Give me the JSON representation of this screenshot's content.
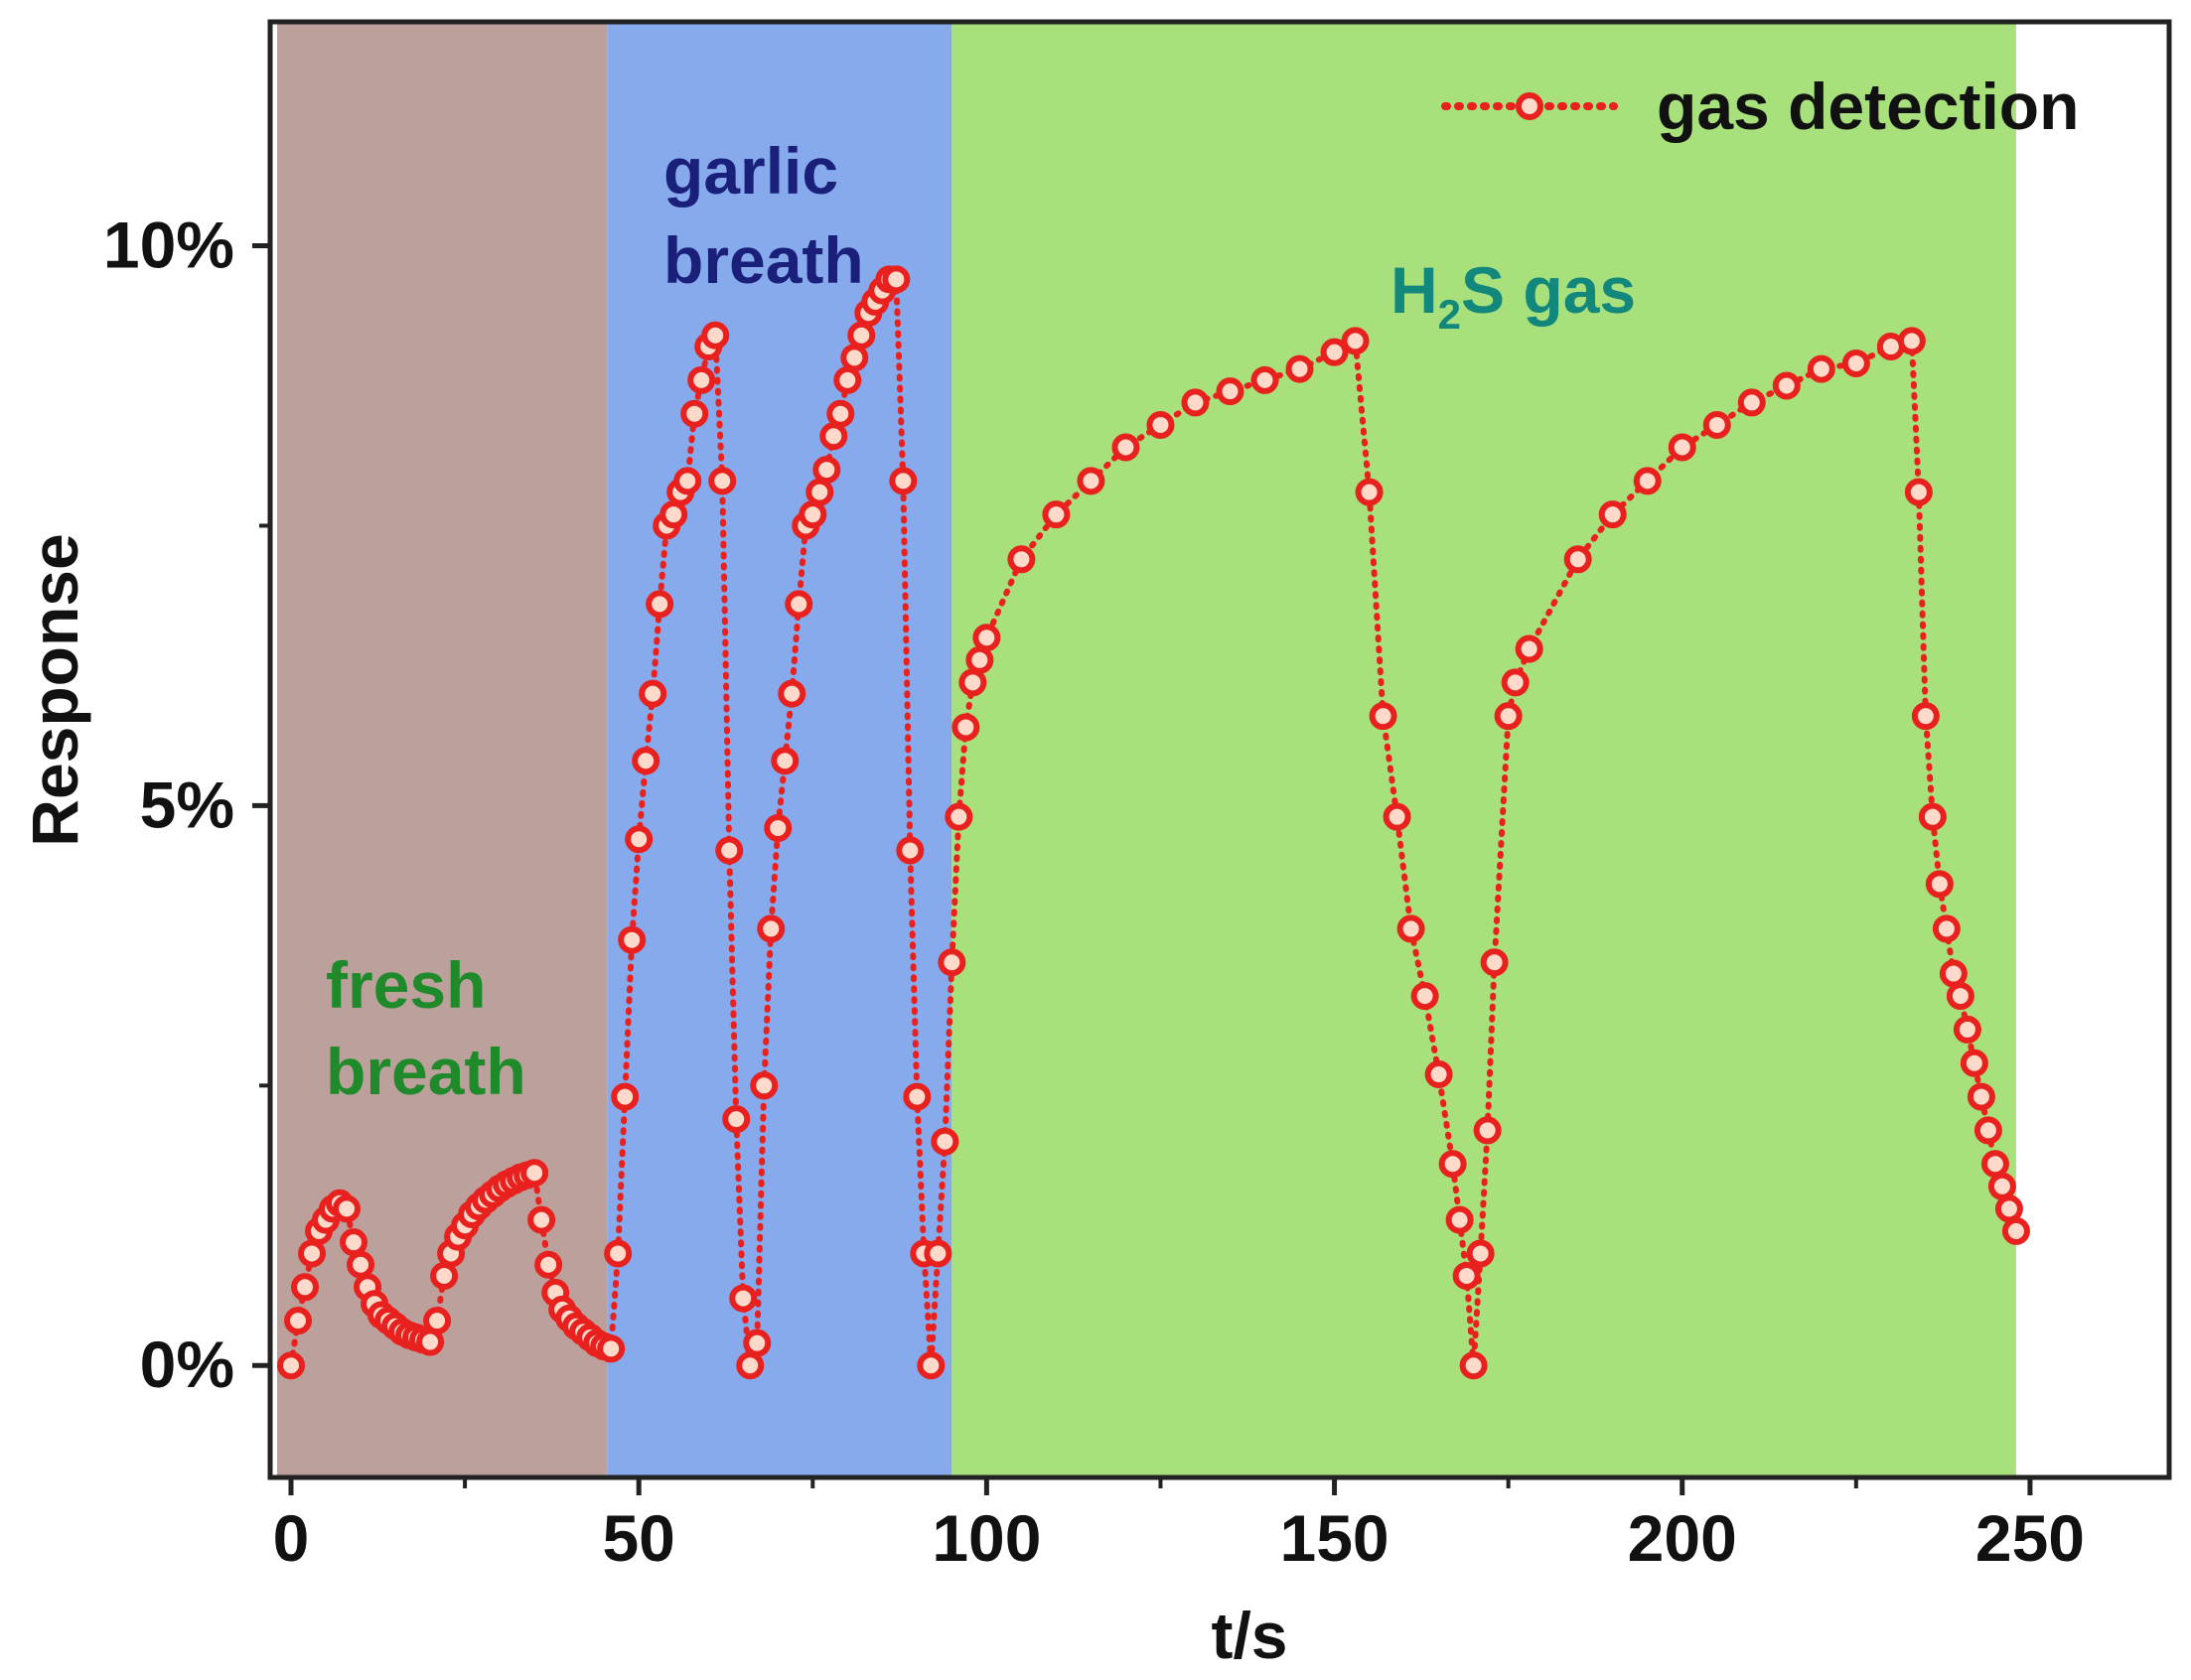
{
  "chart_data": {
    "type": "line",
    "xlabel": "t/s",
    "ylabel": "Response",
    "xlim": [
      -3,
      270
    ],
    "ylim": [
      -0.01,
      0.12
    ],
    "x_ticks": [
      {
        "value": 0,
        "label": "0"
      },
      {
        "value": 50,
        "label": "50"
      },
      {
        "value": 100,
        "label": "100"
      },
      {
        "value": 150,
        "label": "150"
      },
      {
        "value": 200,
        "label": "200"
      },
      {
        "value": 250,
        "label": "250"
      }
    ],
    "y_ticks": [
      {
        "value": 0,
        "label": "0%"
      },
      {
        "value": 0.05,
        "label": "5%"
      },
      {
        "value": 0.1,
        "label": "10%"
      }
    ],
    "regions": [
      {
        "label_lines": [
          "fresh",
          "breath"
        ],
        "x_start": -2,
        "x_end": 45.5,
        "fill": "#bba09c",
        "label_color": "#1e8a2a"
      },
      {
        "label_lines": [
          "garlic",
          "breath"
        ],
        "x_start": 45.5,
        "x_end": 95,
        "fill": "#87aaec",
        "label_color": "#1a1f7a"
      },
      {
        "label_lines": [
          "H",
          "2",
          "S gas"
        ],
        "x_start": 95,
        "x_end": 248,
        "fill": "#a8e07c",
        "label_color": "#12877c"
      }
    ],
    "grid": false,
    "legend": {
      "position": "top-right"
    },
    "series": [
      {
        "name": "gas detection",
        "color": "#e8201e",
        "points": [
          [
            0,
            0.0
          ],
          [
            1,
            0.004
          ],
          [
            2,
            0.007
          ],
          [
            3,
            0.01
          ],
          [
            4,
            0.012
          ],
          [
            5,
            0.013
          ],
          [
            6,
            0.014
          ],
          [
            7,
            0.0145
          ],
          [
            8,
            0.014
          ],
          [
            9,
            0.011
          ],
          [
            10,
            0.009
          ],
          [
            11,
            0.007
          ],
          [
            12,
            0.0055
          ],
          [
            13,
            0.0045
          ],
          [
            14,
            0.004
          ],
          [
            15,
            0.0035
          ],
          [
            16,
            0.003
          ],
          [
            17,
            0.0027
          ],
          [
            18,
            0.0025
          ],
          [
            19,
            0.0023
          ],
          [
            20,
            0.0021
          ],
          [
            21,
            0.004
          ],
          [
            22,
            0.008
          ],
          [
            23,
            0.01
          ],
          [
            24,
            0.0115
          ],
          [
            25,
            0.0125
          ],
          [
            26,
            0.0135
          ],
          [
            27,
            0.0142
          ],
          [
            28,
            0.0148
          ],
          [
            29,
            0.0153
          ],
          [
            30,
            0.0158
          ],
          [
            31,
            0.0162
          ],
          [
            32,
            0.0165
          ],
          [
            33,
            0.0168
          ],
          [
            34,
            0.017
          ],
          [
            35,
            0.0172
          ],
          [
            36,
            0.013
          ],
          [
            37,
            0.009
          ],
          [
            38,
            0.0065
          ],
          [
            39,
            0.005
          ],
          [
            40,
            0.0042
          ],
          [
            41,
            0.0035
          ],
          [
            42,
            0.003
          ],
          [
            43,
            0.0025
          ],
          [
            44,
            0.002
          ],
          [
            45,
            0.0017
          ],
          [
            46,
            0.0015
          ],
          [
            47,
            0.01
          ],
          [
            48,
            0.024
          ],
          [
            49,
            0.038
          ],
          [
            50,
            0.047
          ],
          [
            51,
            0.054
          ],
          [
            52,
            0.06
          ],
          [
            53,
            0.068
          ],
          [
            54,
            0.075
          ],
          [
            55,
            0.076
          ],
          [
            56,
            0.078
          ],
          [
            57,
            0.079
          ],
          [
            58,
            0.085
          ],
          [
            59,
            0.088
          ],
          [
            60,
            0.091
          ],
          [
            61,
            0.092
          ],
          [
            62,
            0.079
          ],
          [
            63,
            0.046
          ],
          [
            64,
            0.022
          ],
          [
            65,
            0.006
          ],
          [
            66,
            0.0
          ],
          [
            67,
            0.002
          ],
          [
            68,
            0.025
          ],
          [
            69,
            0.039
          ],
          [
            70,
            0.048
          ],
          [
            71,
            0.054
          ],
          [
            72,
            0.06
          ],
          [
            73,
            0.068
          ],
          [
            74,
            0.075
          ],
          [
            75,
            0.076
          ],
          [
            76,
            0.078
          ],
          [
            77,
            0.08
          ],
          [
            78,
            0.083
          ],
          [
            79,
            0.085
          ],
          [
            80,
            0.088
          ],
          [
            81,
            0.09
          ],
          [
            82,
            0.092
          ],
          [
            83,
            0.094
          ],
          [
            84,
            0.095
          ],
          [
            85,
            0.096
          ],
          [
            86,
            0.097
          ],
          [
            87,
            0.097
          ],
          [
            88,
            0.079
          ],
          [
            89,
            0.046
          ],
          [
            90,
            0.024
          ],
          [
            91,
            0.01
          ],
          [
            92,
            0.0
          ],
          [
            93,
            0.01
          ],
          [
            94,
            0.02
          ],
          [
            95,
            0.036
          ],
          [
            96,
            0.049
          ],
          [
            97,
            0.057
          ],
          [
            98,
            0.061
          ],
          [
            99,
            0.063
          ],
          [
            100,
            0.065
          ],
          [
            105,
            0.072
          ],
          [
            110,
            0.076
          ],
          [
            115,
            0.079
          ],
          [
            120,
            0.082
          ],
          [
            125,
            0.084
          ],
          [
            130,
            0.086
          ],
          [
            135,
            0.087
          ],
          [
            140,
            0.088
          ],
          [
            145,
            0.089
          ],
          [
            150,
            0.0905
          ],
          [
            153,
            0.0915
          ],
          [
            155,
            0.078
          ],
          [
            157,
            0.058
          ],
          [
            159,
            0.049
          ],
          [
            161,
            0.039
          ],
          [
            163,
            0.033
          ],
          [
            165,
            0.026
          ],
          [
            167,
            0.018
          ],
          [
            168,
            0.013
          ],
          [
            169,
            0.008
          ],
          [
            170,
            0.0
          ],
          [
            171,
            0.01
          ],
          [
            172,
            0.021
          ],
          [
            173,
            0.036
          ],
          [
            175,
            0.058
          ],
          [
            176,
            0.061
          ],
          [
            178,
            0.064
          ],
          [
            185,
            0.072
          ],
          [
            190,
            0.076
          ],
          [
            195,
            0.079
          ],
          [
            200,
            0.082
          ],
          [
            205,
            0.084
          ],
          [
            210,
            0.086
          ],
          [
            215,
            0.0875
          ],
          [
            220,
            0.089
          ],
          [
            225,
            0.0895
          ],
          [
            230,
            0.091
          ],
          [
            233,
            0.0915
          ],
          [
            234,
            0.078
          ],
          [
            235,
            0.058
          ],
          [
            236,
            0.049
          ],
          [
            237,
            0.043
          ],
          [
            238,
            0.039
          ],
          [
            239,
            0.035
          ],
          [
            240,
            0.033
          ],
          [
            241,
            0.03
          ],
          [
            242,
            0.027
          ],
          [
            243,
            0.024
          ],
          [
            244,
            0.021
          ],
          [
            245,
            0.018
          ],
          [
            246,
            0.016
          ],
          [
            247,
            0.014
          ],
          [
            248,
            0.012
          ]
        ]
      }
    ]
  }
}
